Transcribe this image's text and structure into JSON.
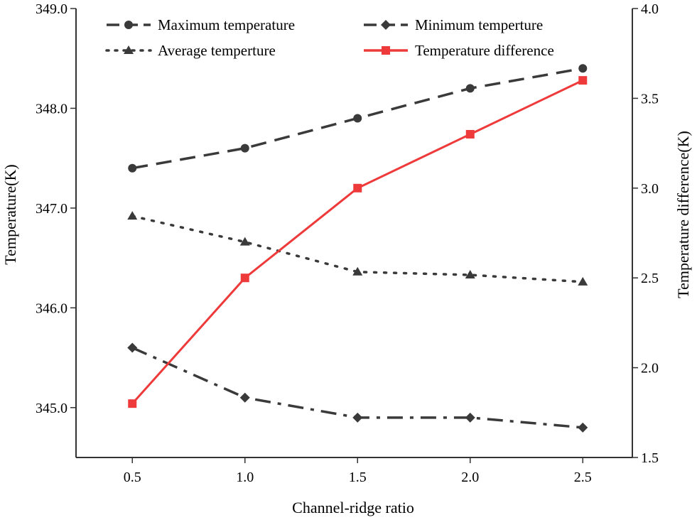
{
  "chart_data": {
    "type": "line",
    "x": [
      0.5,
      1.0,
      1.5,
      2.0,
      2.5
    ],
    "x_tick_labels": [
      "0.5",
      "1.0",
      "1.5",
      "2.0",
      "2.5"
    ],
    "xlim": [
      0.25,
      2.72
    ],
    "xlabel": "Channel-ridge ratio",
    "y_left": {
      "label": "Temperature(K)",
      "ylim": [
        344.5,
        349.0
      ],
      "ticks": [
        345.0,
        346.0,
        347.0,
        348.0,
        349.0
      ],
      "tick_labels": [
        "345.0",
        "346.0",
        "347.0",
        "348.0",
        "349.0"
      ]
    },
    "y_right": {
      "label": "Temperature difference(K)",
      "ylim": [
        1.5,
        4.0
      ],
      "ticks": [
        1.5,
        2.0,
        2.5,
        3.0,
        3.5,
        4.0
      ],
      "tick_labels": [
        "1.5",
        "2.0",
        "2.5",
        "3.0",
        "3.5",
        "4.0"
      ]
    },
    "series": [
      {
        "name": "Maximum temperature",
        "axis": "left",
        "values": [
          347.4,
          347.6,
          347.9,
          348.2,
          348.4
        ],
        "color": "#3a3a3a",
        "marker": "circle",
        "line_style": "dash"
      },
      {
        "name": "Minimum temperture",
        "axis": "left",
        "values": [
          345.6,
          345.1,
          344.9,
          344.9,
          344.8
        ],
        "color": "#3a3a3a",
        "marker": "diamond",
        "line_style": "dashdot"
      },
      {
        "name": "Average temperture",
        "axis": "left",
        "values": [
          346.92,
          346.66,
          346.36,
          346.33,
          346.26
        ],
        "color": "#3a3a3a",
        "marker": "triangle",
        "line_style": "dot"
      },
      {
        "name": "Temperature difference",
        "axis": "right",
        "values": [
          1.8,
          2.5,
          3.0,
          3.3,
          3.6
        ],
        "color": "#ee3a3a",
        "marker": "square",
        "line_style": "solid"
      }
    ],
    "legend_placement": "top",
    "grid": false
  }
}
